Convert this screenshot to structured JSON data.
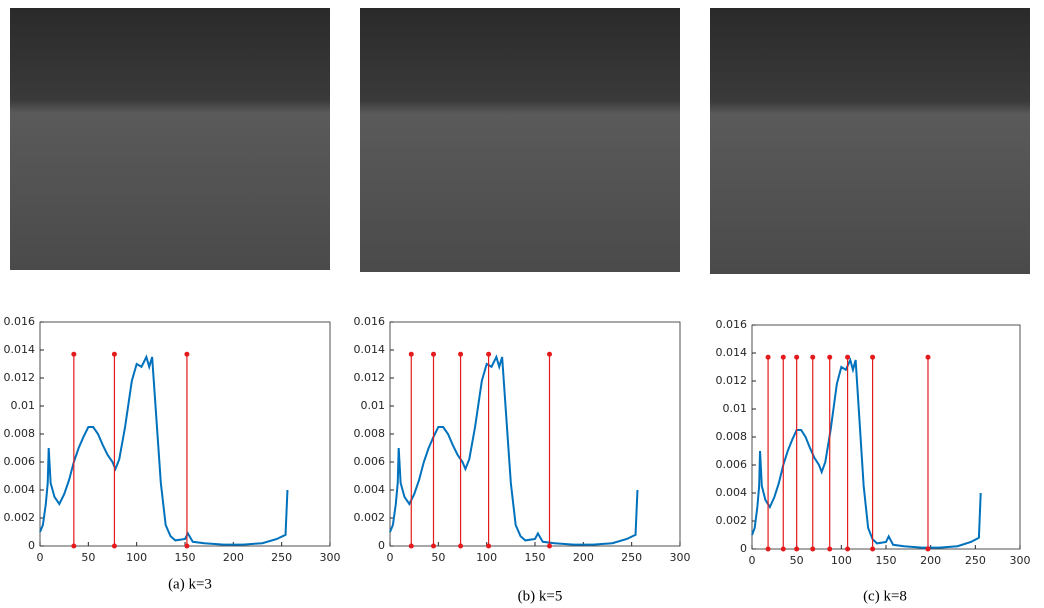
{
  "chart_data": [
    {
      "type": "line",
      "caption": "(a) k=3",
      "xlim": [
        0,
        300
      ],
      "xticks": [
        0,
        50,
        100,
        150,
        200,
        250,
        300
      ],
      "ylim": [
        0,
        0.016
      ],
      "yticks": [
        0,
        0.002,
        0.004,
        0.006,
        0.008,
        0.01,
        0.012,
        0.014,
        0.016
      ],
      "series": [
        {
          "color": "#0072bd",
          "x": [
            0,
            3,
            6,
            8,
            9,
            11,
            15,
            20,
            25,
            30,
            35,
            40,
            45,
            50,
            55,
            60,
            65,
            70,
            75,
            78,
            82,
            88,
            95,
            100,
            105,
            110,
            113,
            116,
            120,
            125,
            130,
            135,
            140,
            150,
            153,
            158,
            170,
            190,
            210,
            230,
            245,
            254,
            256
          ],
          "values": [
            0.001,
            0.0015,
            0.003,
            0.0045,
            0.007,
            0.0045,
            0.0035,
            0.003,
            0.0037,
            0.0047,
            0.006,
            0.007,
            0.0078,
            0.0085,
            0.0085,
            0.008,
            0.0072,
            0.0065,
            0.006,
            0.0055,
            0.0062,
            0.0085,
            0.0118,
            0.013,
            0.0128,
            0.0135,
            0.0128,
            0.0135,
            0.0095,
            0.0045,
            0.0015,
            0.0007,
            0.0004,
            0.0005,
            0.0009,
            0.0003,
            0.0002,
            0.0001,
            0.0001,
            0.0002,
            0.0005,
            0.0008,
            0.004
          ]
        }
      ],
      "stems": {
        "color": "#e41a1c",
        "x": [
          35,
          77,
          152
        ],
        "values": [
          0.0137,
          0.0137,
          0.0137
        ]
      }
    },
    {
      "type": "line",
      "caption": "(b) k=5",
      "xlim": [
        0,
        300
      ],
      "xticks": [
        0,
        50,
        100,
        150,
        200,
        250,
        300
      ],
      "ylim": [
        0,
        0.016
      ],
      "yticks": [
        0,
        0.002,
        0.004,
        0.006,
        0.008,
        0.01,
        0.012,
        0.014,
        0.016
      ],
      "series": [
        {
          "color": "#0072bd",
          "x": [
            0,
            3,
            6,
            8,
            9,
            11,
            15,
            20,
            25,
            30,
            35,
            40,
            45,
            50,
            55,
            60,
            65,
            70,
            75,
            78,
            82,
            88,
            95,
            100,
            105,
            110,
            113,
            116,
            120,
            125,
            130,
            135,
            140,
            150,
            153,
            158,
            170,
            190,
            210,
            230,
            245,
            254,
            256
          ],
          "values": [
            0.001,
            0.0015,
            0.003,
            0.0045,
            0.007,
            0.0045,
            0.0035,
            0.003,
            0.0037,
            0.0047,
            0.006,
            0.007,
            0.0078,
            0.0085,
            0.0085,
            0.008,
            0.0072,
            0.0065,
            0.006,
            0.0055,
            0.0062,
            0.0085,
            0.0118,
            0.013,
            0.0128,
            0.0135,
            0.0128,
            0.0135,
            0.0095,
            0.0045,
            0.0015,
            0.0007,
            0.0004,
            0.0005,
            0.0009,
            0.0003,
            0.0002,
            0.0001,
            0.0001,
            0.0002,
            0.0005,
            0.0008,
            0.004
          ]
        }
      ],
      "stems": {
        "color": "#e41a1c",
        "x": [
          22,
          45,
          73,
          102,
          165
        ],
        "values": [
          0.0137,
          0.0137,
          0.0137,
          0.0137,
          0.0137
        ]
      }
    },
    {
      "type": "line",
      "caption": "(c) k=8",
      "xlim": [
        0,
        300
      ],
      "xticks": [
        0,
        50,
        100,
        150,
        200,
        250,
        300
      ],
      "ylim": [
        0,
        0.016
      ],
      "yticks": [
        0,
        0.002,
        0.004,
        0.006,
        0.008,
        0.01,
        0.012,
        0.014,
        0.016
      ],
      "series": [
        {
          "color": "#0072bd",
          "x": [
            0,
            3,
            6,
            8,
            9,
            11,
            15,
            20,
            25,
            30,
            35,
            40,
            45,
            50,
            55,
            60,
            65,
            70,
            75,
            78,
            82,
            88,
            95,
            100,
            105,
            110,
            113,
            116,
            120,
            125,
            130,
            135,
            140,
            150,
            153,
            158,
            170,
            190,
            210,
            230,
            245,
            254,
            256
          ],
          "values": [
            0.001,
            0.0015,
            0.003,
            0.0045,
            0.007,
            0.0045,
            0.0035,
            0.003,
            0.0037,
            0.0047,
            0.006,
            0.007,
            0.0078,
            0.0085,
            0.0085,
            0.008,
            0.0072,
            0.0065,
            0.006,
            0.0055,
            0.0062,
            0.0085,
            0.0118,
            0.013,
            0.0128,
            0.0135,
            0.0128,
            0.0135,
            0.0095,
            0.0045,
            0.0015,
            0.0007,
            0.0004,
            0.0005,
            0.0009,
            0.0003,
            0.0002,
            0.0001,
            0.0001,
            0.0002,
            0.0005,
            0.0008,
            0.004
          ]
        }
      ],
      "stems": {
        "color": "#e41a1c",
        "x": [
          18,
          35,
          50,
          68,
          87,
          107,
          135,
          197
        ],
        "values": [
          0.0137,
          0.0137,
          0.0137,
          0.0137,
          0.0137,
          0.0137,
          0.0137,
          0.0137
        ]
      }
    }
  ]
}
